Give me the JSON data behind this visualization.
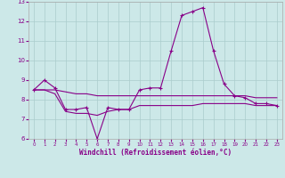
{
  "xlabel": "Windchill (Refroidissement éolien,°C)",
  "background_color": "#cce8e8",
  "grid_color": "#aacccc",
  "line_color": "#880088",
  "xlim": [
    -0.5,
    23.5
  ],
  "ylim": [
    6,
    13
  ],
  "yticks": [
    6,
    7,
    8,
    9,
    10,
    11,
    12,
    13
  ],
  "xticks": [
    0,
    1,
    2,
    3,
    4,
    5,
    6,
    7,
    8,
    9,
    10,
    11,
    12,
    13,
    14,
    15,
    16,
    17,
    18,
    19,
    20,
    21,
    22,
    23
  ],
  "line1_x": [
    0,
    1,
    2,
    3,
    4,
    5,
    6,
    7,
    8,
    9,
    10,
    11,
    12,
    13,
    14,
    15,
    16,
    17,
    18,
    19,
    20,
    21,
    22,
    23
  ],
  "line1_y": [
    8.5,
    9.0,
    8.6,
    7.5,
    7.5,
    7.6,
    6.0,
    7.6,
    7.5,
    7.5,
    8.5,
    8.6,
    8.6,
    10.5,
    12.3,
    12.5,
    12.7,
    10.5,
    8.8,
    8.2,
    8.1,
    7.8,
    7.8,
    7.7
  ],
  "line2_x": [
    0,
    1,
    2,
    3,
    4,
    5,
    6,
    7,
    8,
    9,
    10,
    11,
    12,
    13,
    14,
    15,
    16,
    17,
    18,
    19,
    20,
    21,
    22,
    23
  ],
  "line2_y": [
    8.5,
    8.5,
    8.5,
    8.4,
    8.3,
    8.3,
    8.2,
    8.2,
    8.2,
    8.2,
    8.2,
    8.2,
    8.2,
    8.2,
    8.2,
    8.2,
    8.2,
    8.2,
    8.2,
    8.2,
    8.2,
    8.1,
    8.1,
    8.1
  ],
  "line3_x": [
    0,
    1,
    2,
    3,
    4,
    5,
    6,
    7,
    8,
    9,
    10,
    11,
    12,
    13,
    14,
    15,
    16,
    17,
    18,
    19,
    20,
    21,
    22,
    23
  ],
  "line3_y": [
    8.5,
    8.5,
    8.3,
    7.4,
    7.3,
    7.3,
    7.2,
    7.4,
    7.5,
    7.5,
    7.7,
    7.7,
    7.7,
    7.7,
    7.7,
    7.7,
    7.8,
    7.8,
    7.8,
    7.8,
    7.8,
    7.7,
    7.7,
    7.7
  ]
}
